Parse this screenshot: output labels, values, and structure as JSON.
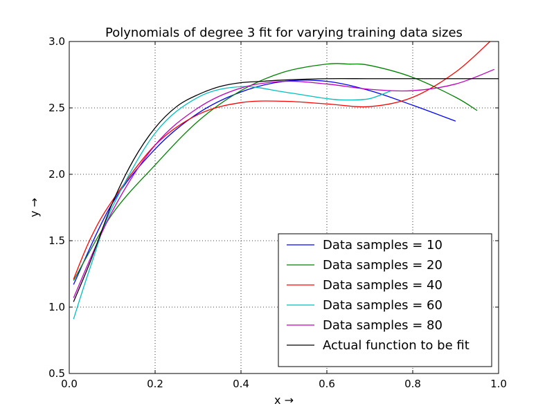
{
  "chart_data": {
    "type": "line",
    "title": "Polynomials of degree 3 fit for varying training data sizes",
    "xlabel": "x →",
    "ylabel": "y →",
    "xlim": [
      0.0,
      1.0
    ],
    "ylim": [
      0.5,
      3.0
    ],
    "xticks": [
      "0.0",
      "0.2",
      "0.4",
      "0.6",
      "0.8",
      "1.0"
    ],
    "yticks": [
      "0.5",
      "1.0",
      "1.5",
      "2.0",
      "2.5",
      "3.0"
    ],
    "grid": true,
    "grid_style": "dotted",
    "legend_position": "lower-right",
    "series": [
      {
        "name": "Data samples = 10",
        "color": "#0000ff",
        "x": [
          0.01,
          0.1,
          0.2,
          0.3,
          0.4,
          0.5,
          0.6,
          0.7,
          0.8,
          0.9
        ],
        "y": [
          1.17,
          1.78,
          2.19,
          2.46,
          2.62,
          2.7,
          2.7,
          2.63,
          2.52,
          2.4
        ]
      },
      {
        "name": "Data samples = 20",
        "color": "#008000",
        "x": [
          0.01,
          0.1,
          0.2,
          0.3,
          0.4,
          0.5,
          0.6,
          0.65,
          0.7,
          0.8,
          0.9,
          0.95
        ],
        "y": [
          1.2,
          1.7,
          2.07,
          2.4,
          2.63,
          2.77,
          2.83,
          2.83,
          2.82,
          2.73,
          2.58,
          2.48
        ]
      },
      {
        "name": "Data samples = 40",
        "color": "#ff0000",
        "x": [
          0.01,
          0.05,
          0.1,
          0.2,
          0.3,
          0.4,
          0.5,
          0.6,
          0.7,
          0.8,
          0.9,
          0.98
        ],
        "y": [
          1.21,
          1.52,
          1.8,
          2.22,
          2.45,
          2.54,
          2.55,
          2.53,
          2.51,
          2.58,
          2.77,
          3.0
        ]
      },
      {
        "name": "Data samples = 60",
        "color": "#00bfbf",
        "x": [
          0.01,
          0.05,
          0.1,
          0.2,
          0.3,
          0.4,
          0.5,
          0.6,
          0.65,
          0.7,
          0.75
        ],
        "y": [
          0.91,
          1.31,
          1.75,
          2.31,
          2.58,
          2.66,
          2.62,
          2.57,
          2.56,
          2.57,
          2.63
        ]
      },
      {
        "name": "Data samples = 80",
        "color": "#bf00bf",
        "x": [
          0.01,
          0.1,
          0.2,
          0.3,
          0.4,
          0.5,
          0.6,
          0.7,
          0.8,
          0.9,
          0.99
        ],
        "y": [
          1.07,
          1.72,
          2.22,
          2.5,
          2.65,
          2.7,
          2.68,
          2.64,
          2.63,
          2.68,
          2.79
        ]
      },
      {
        "name": "Actual function to be fit",
        "color": "#000000",
        "x": [
          0.01,
          0.05,
          0.1,
          0.15,
          0.2,
          0.25,
          0.3,
          0.35,
          0.4,
          0.45,
          0.5,
          0.6,
          0.7,
          0.8,
          0.9,
          1.0
        ],
        "y": [
          1.04,
          1.35,
          1.78,
          2.11,
          2.35,
          2.51,
          2.6,
          2.66,
          2.69,
          2.7,
          2.71,
          2.72,
          2.72,
          2.72,
          2.72,
          2.72
        ]
      }
    ]
  }
}
